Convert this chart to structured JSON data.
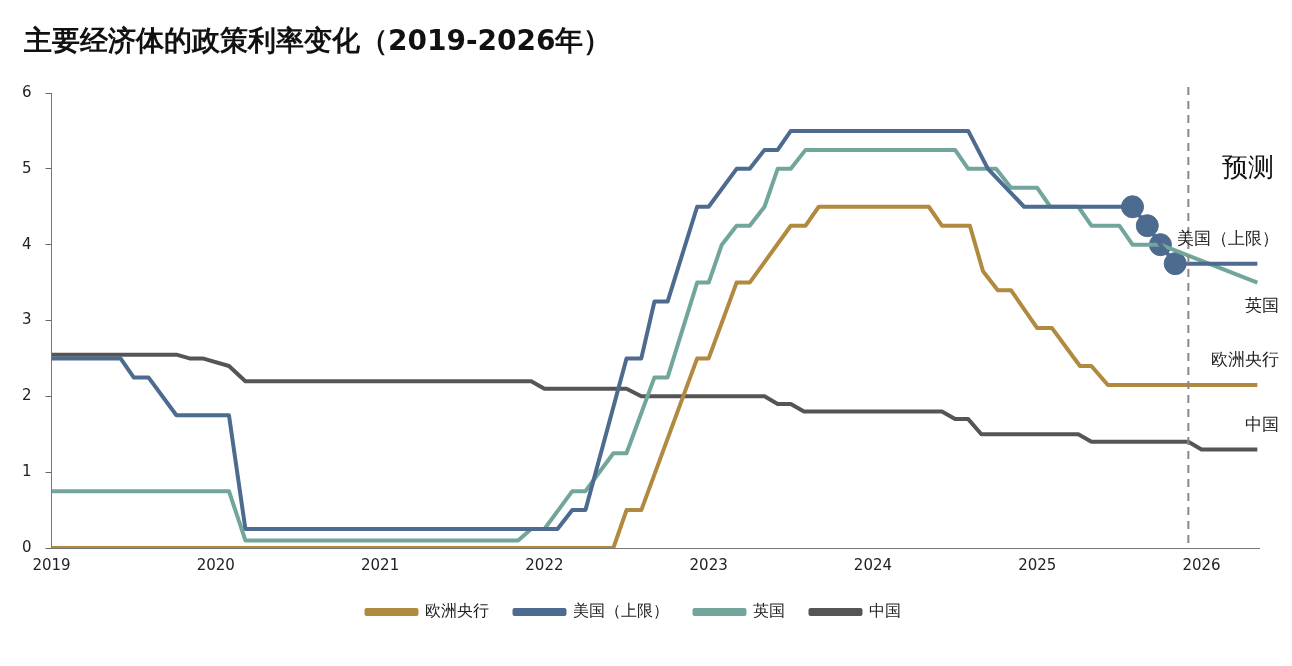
{
  "chart_data": {
    "type": "line",
    "title": "主要经济体的政策利率变化（2019-2026年）",
    "xlim": [
      2019,
      2026.35
    ],
    "xticks": [
      2019,
      2020,
      2021,
      2022,
      2023,
      2024,
      2025,
      2026
    ],
    "ylim": [
      0,
      6
    ],
    "yticks": [
      0,
      1,
      2,
      3,
      4,
      5,
      6
    ],
    "grid": false,
    "legend": "bottom",
    "marker": "none",
    "line_style": "solid",
    "series": [
      {
        "name": "欧洲央行",
        "color": "#b08a3e",
        "x": [
          2019,
          2022.42,
          2022.5,
          2022.59,
          2022.93,
          2023.0,
          2023.17,
          2023.25,
          2023.5,
          2023.59,
          2023.67,
          2024.34,
          2024.42,
          2024.59,
          2024.67,
          2024.76,
          2024.84,
          2025.0,
          2025.09,
          2025.26,
          2025.33,
          2025.43,
          2026.34
        ],
        "values": [
          0,
          0,
          0.5,
          0.5,
          2.5,
          2.5,
          3.5,
          3.5,
          4.25,
          4.25,
          4.5,
          4.5,
          4.25,
          4.25,
          3.65,
          3.4,
          3.4,
          2.9,
          2.9,
          2.4,
          2.4,
          2.15,
          2.15
        ]
      },
      {
        "name": "美国（上限）",
        "color": "#4d6a8f",
        "x": [
          2019,
          2019.42,
          2019.5,
          2019.59,
          2019.76,
          2020.08,
          2020.18,
          2022.08,
          2022.17,
          2022.25,
          2022.5,
          2022.59,
          2022.67,
          2022.75,
          2022.93,
          2023.0,
          2023.17,
          2023.25,
          2023.34,
          2023.42,
          2023.5,
          2024.58,
          2024.7,
          2024.92,
          2025.58,
          2025.67,
          2025.75,
          2025.84,
          2026.34
        ],
        "values": [
          2.5,
          2.5,
          2.25,
          2.25,
          1.75,
          1.75,
          0.25,
          0.25,
          0.5,
          0.5,
          2.5,
          2.5,
          3.25,
          3.25,
          4.5,
          4.5,
          5.0,
          5.0,
          5.25,
          5.25,
          5.5,
          5.5,
          5.0,
          4.5,
          4.5,
          4.25,
          4.0,
          3.75,
          3.75
        ]
      },
      {
        "name": "英国",
        "color": "#72a59b",
        "x": [
          2019,
          2020.08,
          2020.18,
          2021.84,
          2021.92,
          2022.0,
          2022.17,
          2022.25,
          2022.42,
          2022.5,
          2022.67,
          2022.75,
          2022.93,
          2023.0,
          2023.08,
          2023.17,
          2023.25,
          2023.34,
          2023.42,
          2023.5,
          2023.59,
          2024.5,
          2024.58,
          2024.75,
          2024.84,
          2025.0,
          2025.08,
          2025.25,
          2025.33,
          2025.5,
          2025.58,
          2025.75,
          2026.34
        ],
        "values": [
          0.75,
          0.75,
          0.1,
          0.1,
          0.25,
          0.25,
          0.75,
          0.75,
          1.25,
          1.25,
          2.25,
          2.25,
          3.5,
          3.5,
          4.0,
          4.25,
          4.25,
          4.5,
          5.0,
          5.0,
          5.25,
          5.25,
          5.0,
          5.0,
          4.75,
          4.75,
          4.5,
          4.5,
          4.25,
          4.25,
          4.0,
          4.0,
          3.5
        ]
      },
      {
        "name": "中国",
        "color": "#555555",
        "x": [
          2019,
          2019.76,
          2019.84,
          2019.92,
          2020.08,
          2020.18,
          2021.92,
          2022.0,
          2022.5,
          2022.59,
          2023.34,
          2023.42,
          2023.5,
          2023.58,
          2024.42,
          2024.5,
          2024.58,
          2024.66,
          2025.25,
          2025.33,
          2025.92,
          2026.0,
          2026.34
        ],
        "values": [
          2.55,
          2.55,
          2.5,
          2.5,
          2.4,
          2.2,
          2.2,
          2.1,
          2.1,
          2.0,
          2.0,
          1.9,
          1.9,
          1.8,
          1.8,
          1.7,
          1.7,
          1.5,
          1.5,
          1.4,
          1.4,
          1.3,
          1.3
        ]
      },
      {
        "type": "scatter",
        "marker": "circle",
        "color": "#4d6a8f",
        "x": [
          2025.58,
          2025.67,
          2025.75,
          2025.84
        ],
        "values": [
          4.5,
          4.25,
          4.0,
          3.75
        ]
      }
    ],
    "ref_lines": [
      {
        "axis": "x",
        "value": 2025.92,
        "label": "预测",
        "color": "#888888",
        "line_style": "dashed"
      }
    ]
  }
}
